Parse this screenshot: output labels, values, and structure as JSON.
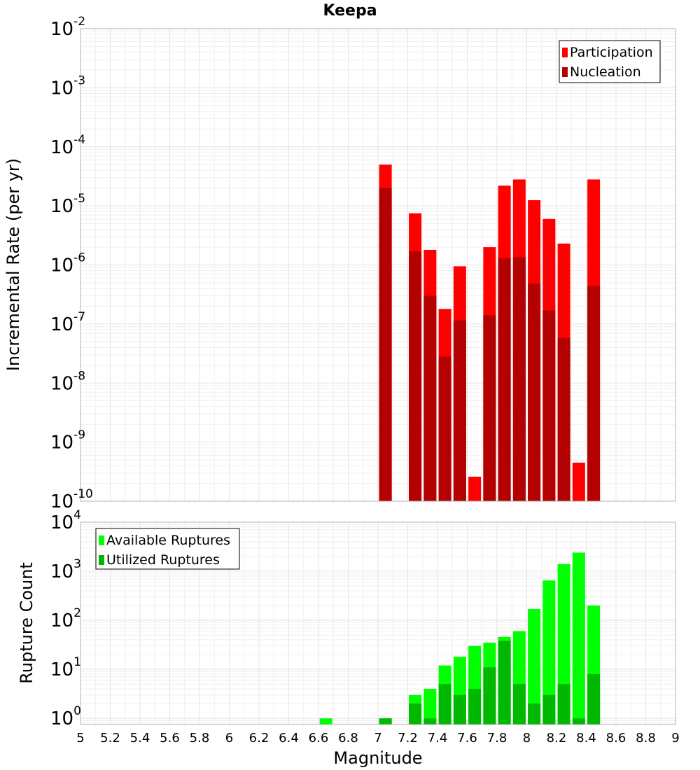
{
  "chart_data": [
    {
      "type": "bar",
      "title": "Keepa",
      "xlabel": "",
      "ylabel": "Incremental Rate (per yr)",
      "yscale": "log",
      "ylim": [
        1e-10,
        0.01
      ],
      "xlim": [
        5,
        9
      ],
      "y_ticks": [
        {
          "base": "10",
          "exp": "-10"
        },
        {
          "base": "10",
          "exp": "-9"
        },
        {
          "base": "10",
          "exp": "-8"
        },
        {
          "base": "10",
          "exp": "-7"
        },
        {
          "base": "10",
          "exp": "-6"
        },
        {
          "base": "10",
          "exp": "-5"
        },
        {
          "base": "10",
          "exp": "-4"
        },
        {
          "base": "10",
          "exp": "-3"
        },
        {
          "base": "10",
          "exp": "-2"
        }
      ],
      "legend_position": "top-right",
      "grid": true,
      "x": [
        7.05,
        7.25,
        7.35,
        7.45,
        7.55,
        7.65,
        7.75,
        7.85,
        7.95,
        8.05,
        8.15,
        8.25,
        8.35,
        8.45
      ],
      "series": [
        {
          "name": "Participation",
          "color": "#ff0000",
          "values": [
            5e-05,
            7.5e-06,
            1.8e-06,
            1.8e-07,
            9.5e-07,
            2.6e-10,
            2e-06,
            2.2e-05,
            2.8e-05,
            1.25e-05,
            6e-06,
            2.3e-06,
            4.5e-10,
            2.8e-05
          ]
        },
        {
          "name": "Nucleation",
          "color": "#b30000",
          "values": [
            2e-05,
            1.7e-06,
            3e-07,
            2.8e-08,
            1.15e-07,
            null,
            1.4e-07,
            1.3e-06,
            1.35e-06,
            4.8e-07,
            1.7e-07,
            5.8e-08,
            null,
            4.4e-07
          ]
        }
      ]
    },
    {
      "type": "bar",
      "xlabel": "Magnitude",
      "ylabel": "Rupture Count",
      "yscale": "log",
      "ylim": [
        0.75,
        10000
      ],
      "xlim": [
        5,
        9
      ],
      "y_ticks": [
        {
          "base": "10",
          "exp": "0"
        },
        {
          "base": "10",
          "exp": "1"
        },
        {
          "base": "10",
          "exp": "2"
        },
        {
          "base": "10",
          "exp": "3"
        },
        {
          "base": "10",
          "exp": "4"
        }
      ],
      "x_ticks": [
        "5",
        "5.2",
        "5.4",
        "5.6",
        "5.8",
        "6",
        "6.2",
        "6.4",
        "6.6",
        "6.8",
        "7",
        "7.2",
        "7.4",
        "7.6",
        "7.8",
        "8",
        "8.2",
        "8.4",
        "8.6",
        "8.8",
        "9"
      ],
      "legend_position": "top-left",
      "grid": true,
      "x": [
        6.65,
        7.05,
        7.25,
        7.35,
        7.45,
        7.55,
        7.65,
        7.75,
        7.85,
        7.95,
        8.05,
        8.15,
        8.25,
        8.35,
        8.45
      ],
      "series": [
        {
          "name": "Available Ruptures",
          "color": "#00ff00",
          "values": [
            1,
            1,
            3,
            4,
            12,
            18,
            30,
            35,
            46,
            60,
            170,
            650,
            1400,
            2400,
            200
          ]
        },
        {
          "name": "Utilized Ruptures",
          "color": "#00b800",
          "values": [
            null,
            1,
            2,
            1,
            5,
            3,
            4,
            11,
            38,
            5,
            2,
            3,
            5,
            1,
            8
          ]
        }
      ]
    }
  ]
}
